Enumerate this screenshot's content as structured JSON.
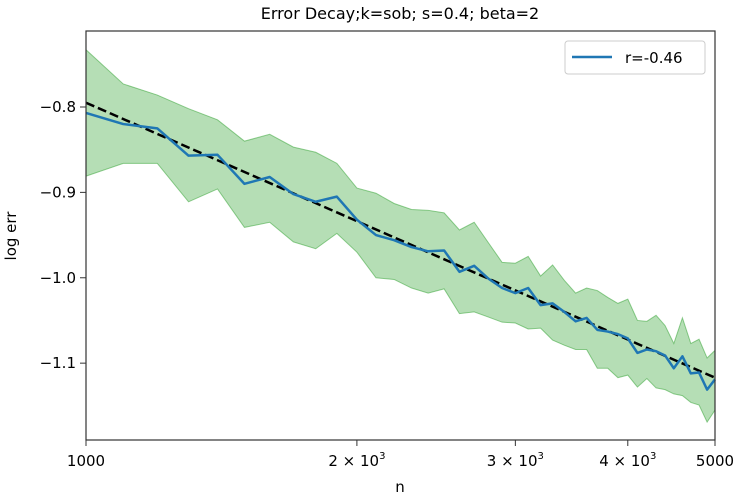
{
  "chart_data": {
    "type": "line",
    "title": "Error Decay;k=sob; s=0.4; beta=2",
    "xlabel": "n",
    "ylabel": "log err",
    "xscale": "log",
    "xlim": [
      1000,
      5000
    ],
    "ylim": [
      -1.19,
      -0.711
    ],
    "grid": false,
    "legend_placement": "top-right",
    "x_ticks": [
      {
        "value": 1000,
        "label": "1000",
        "sup": ""
      },
      {
        "value": 2000,
        "label": "2 × 10",
        "sup": "3"
      },
      {
        "value": 3000,
        "label": "3 × 10",
        "sup": "3"
      },
      {
        "value": 4000,
        "label": "4 × 10",
        "sup": "3"
      },
      {
        "value": 5000,
        "label": "5000",
        "sup": ""
      }
    ],
    "y_ticks": [
      {
        "value": -0.8,
        "label": "−0.8"
      },
      {
        "value": -0.9,
        "label": "−0.9"
      },
      {
        "value": -1.0,
        "label": "−1.0"
      },
      {
        "value": -1.1,
        "label": "−1.1"
      }
    ],
    "x": [
      1000,
      1100,
      1200,
      1300,
      1400,
      1500,
      1600,
      1700,
      1800,
      1900,
      2000,
      2100,
      2200,
      2300,
      2400,
      2500,
      2600,
      2700,
      2800,
      2900,
      3000,
      3100,
      3200,
      3300,
      3400,
      3500,
      3600,
      3700,
      3800,
      3900,
      4000,
      4100,
      4200,
      4300,
      4400,
      4500,
      4600,
      4700,
      4800,
      4900,
      5000
    ],
    "series": [
      {
        "name": "r=-0.46",
        "color": "#1f77b4",
        "values": [
          -0.807,
          -0.82,
          -0.825,
          -0.857,
          -0.856,
          -0.89,
          -0.882,
          -0.902,
          -0.911,
          -0.905,
          -0.932,
          -0.95,
          -0.956,
          -0.964,
          -0.969,
          -0.968,
          -0.993,
          -0.986,
          -1.001,
          -1.012,
          -1.018,
          -1.012,
          -1.032,
          -1.03,
          -1.04,
          -1.051,
          -1.047,
          -1.061,
          -1.063,
          -1.066,
          -1.071,
          -1.088,
          -1.084,
          -1.086,
          -1.091,
          -1.106,
          -1.092,
          -1.112,
          -1.111,
          -1.131,
          -1.119
        ]
      }
    ],
    "band": {
      "color": "#2ca02c",
      "upper": [
        -0.733,
        -0.773,
        -0.786,
        -0.802,
        -0.815,
        -0.84,
        -0.832,
        -0.847,
        -0.853,
        -0.866,
        -0.895,
        -0.901,
        -0.913,
        -0.92,
        -0.921,
        -0.924,
        -0.944,
        -0.935,
        -0.959,
        -0.982,
        -0.983,
        -0.975,
        -0.998,
        -0.985,
        -1.003,
        -1.018,
        -1.012,
        -1.015,
        -1.023,
        -1.03,
        -1.025,
        -1.05,
        -1.051,
        -1.044,
        -1.056,
        -1.077,
        -1.047,
        -1.077,
        -1.072,
        -1.094,
        -1.085
      ],
      "lower": [
        -0.881,
        -0.866,
        -0.866,
        -0.911,
        -0.896,
        -0.941,
        -0.935,
        -0.958,
        -0.966,
        -0.948,
        -0.97,
        -1.0,
        -1.002,
        -1.012,
        -1.018,
        -1.013,
        -1.042,
        -1.04,
        -1.046,
        -1.052,
        -1.053,
        -1.06,
        -1.059,
        -1.073,
        -1.079,
        -1.084,
        -1.084,
        -1.106,
        -1.106,
        -1.117,
        -1.114,
        -1.128,
        -1.118,
        -1.129,
        -1.131,
        -1.136,
        -1.138,
        -1.146,
        -1.149,
        -1.169,
        -1.155
      ]
    },
    "fit": {
      "color": "#000000",
      "style": "dashed",
      "x": [
        1000,
        5000
      ],
      "y": [
        -0.795,
        -1.117
      ]
    }
  }
}
